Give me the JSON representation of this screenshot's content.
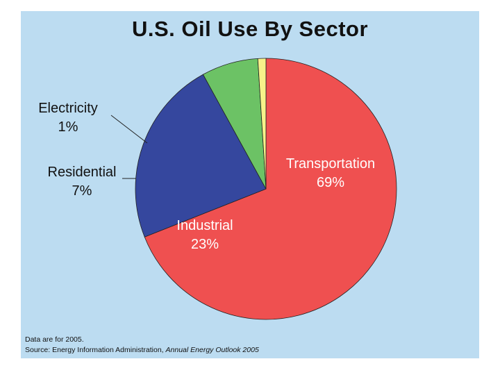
{
  "chart_data": {
    "type": "pie",
    "title": "U.S. Oil Use By Sector",
    "slices": [
      {
        "label": "Transportation",
        "value": 69,
        "value_label": "69%",
        "color": "#ef5050"
      },
      {
        "label": "Industrial",
        "value": 23,
        "value_label": "23%",
        "color": "#35479e"
      },
      {
        "label": "Residential",
        "value": 7,
        "value_label": "7%",
        "color": "#6cc265"
      },
      {
        "label": "Electricity",
        "value": 1,
        "value_label": "1%",
        "color": "#f7f28a"
      }
    ]
  },
  "footer": {
    "note": "Data are for 2005.",
    "source_prefix": "Source: Energy Information Administration,",
    "source_title": "Annual Energy Outlook 2005"
  }
}
